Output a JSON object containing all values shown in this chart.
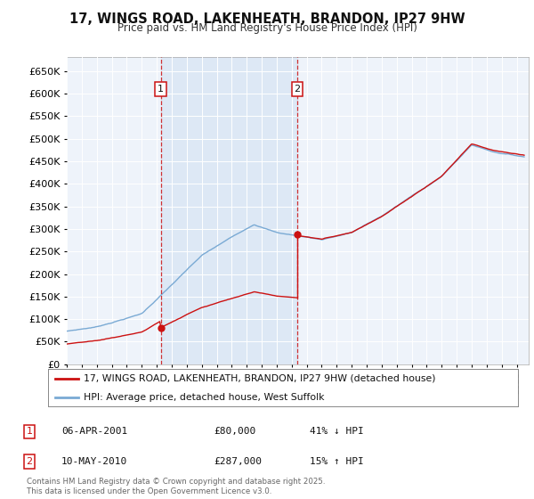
{
  "title_line1": "17, WINGS ROAD, LAKENHEATH, BRANDON, IP27 9HW",
  "title_line2": "Price paid vs. HM Land Registry's House Price Index (HPI)",
  "ylim": [
    0,
    680000
  ],
  "yticks": [
    0,
    50000,
    100000,
    150000,
    200000,
    250000,
    300000,
    350000,
    400000,
    450000,
    500000,
    550000,
    600000,
    650000
  ],
  "ytick_labels": [
    "£0",
    "£50K",
    "£100K",
    "£150K",
    "£200K",
    "£250K",
    "£300K",
    "£350K",
    "£400K",
    "£450K",
    "£500K",
    "£550K",
    "£600K",
    "£650K"
  ],
  "purchase1_date": 2001.27,
  "purchase1_price": 80000,
  "purchase1_label": "1",
  "purchase2_date": 2010.37,
  "purchase2_price": 287000,
  "purchase2_label": "2",
  "hpi_line_color": "#7aaad4",
  "price_line_color": "#cc1111",
  "vline_color": "#cc1111",
  "shade_color": "#dde8f5",
  "bg_color": "#eef3fa",
  "grid_color": "#ffffff",
  "legend_label_red": "17, WINGS ROAD, LAKENHEATH, BRANDON, IP27 9HW (detached house)",
  "legend_label_blue": "HPI: Average price, detached house, West Suffolk",
  "annotation1_date": "06-APR-2001",
  "annotation1_price": "£80,000",
  "annotation1_hpi": "41% ↓ HPI",
  "annotation2_date": "10-MAY-2010",
  "annotation2_price": "£287,000",
  "annotation2_hpi": "15% ↑ HPI",
  "footer": "Contains HM Land Registry data © Crown copyright and database right 2025.\nThis data is licensed under the Open Government Licence v3.0."
}
